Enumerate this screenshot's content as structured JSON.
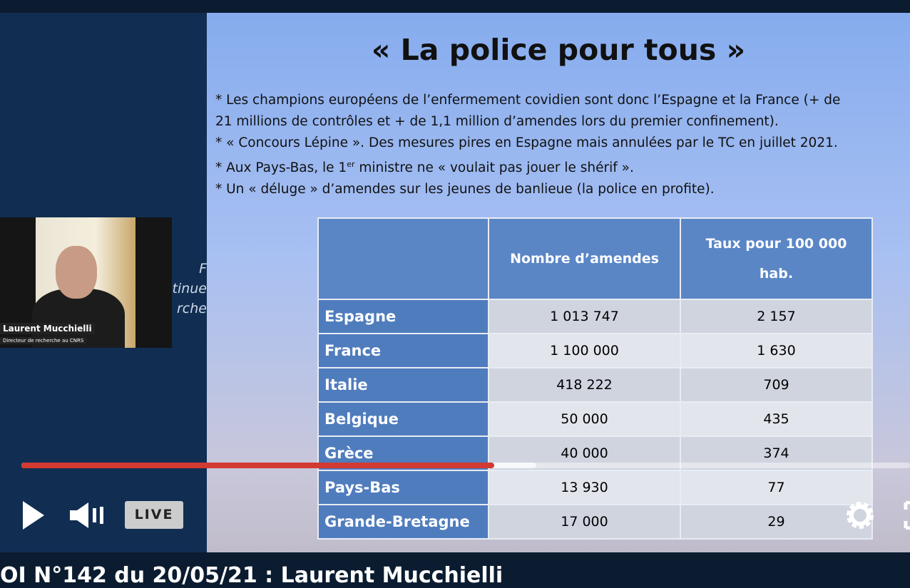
{
  "slide": {
    "title": "« La police pour tous »",
    "bullets": [
      [
        "* Les champions européens de l’enfermement covidien sont donc l’Espagne et la France (+ de"
      ],
      [
        "21 millions de contrôles et + de 1,1 million d’amendes lors du premier confinement)."
      ],
      [
        "* « Concours Lépine ». Des mesures pires en Espagne mais annulées par le TC  en juillet 2021."
      ],
      [
        "* Aux Pays-Bas, le 1",
        "er",
        " ministre ne « voulait pas jouer le shérif »."
      ],
      [
        "* Un « déluge » d’amendes sur les jeunes de banlieue (la police en profite)."
      ]
    ],
    "table": {
      "header": [
        "",
        "Nombre d’amendes",
        "Taux pour 100 000 hab."
      ],
      "rows": [
        [
          "Espagne",
          "1 013 747",
          "2 157"
        ],
        [
          "France",
          "1 100 000",
          "1 630"
        ],
        [
          "Italie",
          "418 222",
          "709"
        ],
        [
          "Belgique",
          "50 000",
          "435"
        ],
        [
          "Grèce",
          "40 000",
          "374"
        ],
        [
          "Pays-Bas",
          "13 930",
          "77"
        ],
        [
          "Grande-Bretagne",
          "17 000",
          "29"
        ]
      ]
    }
  },
  "left_panel": {
    "lines": [
      "F",
      "ntinue",
      "rche"
    ]
  },
  "webcam": {
    "name": "Laurent Mucchielli",
    "role": "Directeur de recherche au CNRS"
  },
  "player": {
    "live": "LIVE",
    "video_title": "OI N°142 du 20/05/21 : Laurent Mucchielli"
  }
}
